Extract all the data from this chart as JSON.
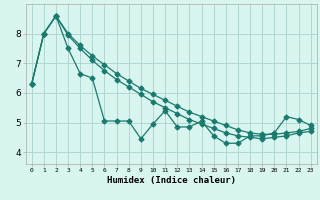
{
  "xlabel": "Humidex (Indice chaleur)",
  "background_color": "#d8f5f0",
  "grid_color": "#b0d8d0",
  "line_color": "#1a7a6e",
  "xlim": [
    -0.5,
    23.5
  ],
  "ylim": [
    3.6,
    9.0
  ],
  "yticks": [
    4,
    5,
    6,
    7,
    8
  ],
  "xticks": [
    0,
    1,
    2,
    3,
    4,
    5,
    6,
    7,
    8,
    9,
    10,
    11,
    12,
    13,
    14,
    15,
    16,
    17,
    18,
    19,
    20,
    21,
    22,
    23
  ],
  "series1": [
    6.3,
    8.0,
    8.6,
    7.5,
    6.65,
    6.5,
    5.05,
    5.05,
    5.05,
    4.45,
    4.95,
    5.4,
    4.85,
    4.85,
    5.05,
    4.55,
    4.3,
    4.3,
    4.55,
    4.55,
    4.65,
    5.2,
    5.1,
    4.9
  ],
  "series2": [
    6.3,
    8.0,
    8.6,
    7.95,
    7.5,
    7.1,
    6.75,
    6.45,
    6.2,
    5.95,
    5.7,
    5.5,
    5.3,
    5.1,
    4.95,
    4.8,
    4.65,
    4.55,
    4.5,
    4.45,
    4.5,
    4.55,
    4.65,
    4.7
  ],
  "series3": [
    6.3,
    8.0,
    8.6,
    8.0,
    7.6,
    7.25,
    6.95,
    6.65,
    6.4,
    6.15,
    5.95,
    5.75,
    5.55,
    5.35,
    5.2,
    5.05,
    4.9,
    4.75,
    4.65,
    4.6,
    4.6,
    4.65,
    4.7,
    4.8
  ]
}
